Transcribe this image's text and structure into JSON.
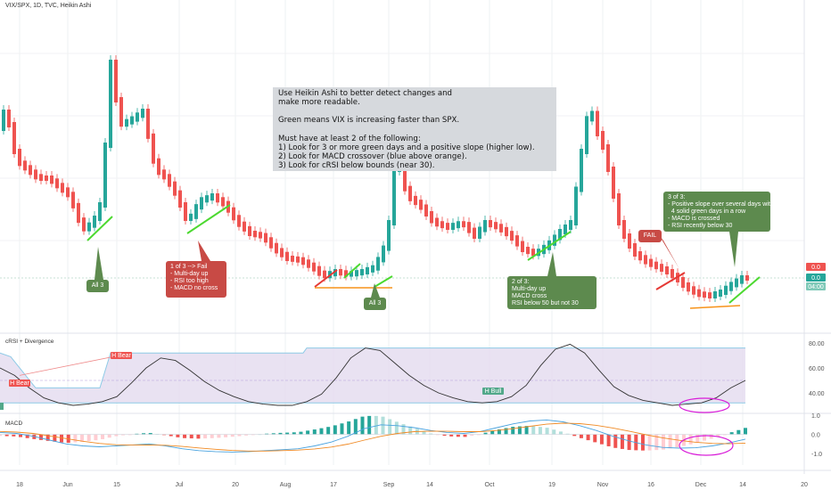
{
  "header": {
    "symbol_line": "VIX/SPX, 1D, TVC, Heikin Ashi"
  },
  "colors": {
    "bull": "#26a69a",
    "bear": "#ef5350",
    "orange": "#f7931a",
    "slope_green": "#4cd930",
    "slope_red": "#e53935",
    "magenta": "#d81bd8",
    "band_fill": "#e4dbef",
    "macd_line": "#4aa3df",
    "signal_line": "#f08a24"
  },
  "info_box": {
    "lines": [
      "Use Heikin Ashi to better detect changes and",
      "make more readable.",
      "",
      "Green means VIX is increasing faster than SPX.",
      "",
      "Must have at least 2 of the following:",
      "1) Look for 3 or more green days and a positive slope (higher low).",
      "2) Look for MACD crossover (blue above orange).",
      "3) Look for cRSI below bounds (near 30)."
    ]
  },
  "callouts": {
    "all3_a": "All 3",
    "fail_box": [
      "1 of 3 --> Fail",
      "- Multi-day up",
      "- RSI too high",
      "- MACD no cross"
    ],
    "all3_b": "All 3",
    "two_of_3": [
      "2 of 3:",
      "Multi-day up",
      "MACD cross",
      "RSI below 50 but not 30"
    ],
    "fail_tag": "FAIL",
    "three_of_3": [
      "3 of 3:",
      "- Positive slope over several days with",
      "  4 solid green days in a row",
      "- MACD is crossed",
      "- RSI recently below 30"
    ]
  },
  "price_tags": {
    "a": "0.0",
    "b": "0.0",
    "time": "04:00"
  },
  "crsi_pane": {
    "title": "cRSI + Divergence",
    "labels": {
      "h_bear_1": "H Bear",
      "h_bear_2": "H Bear",
      "h_bull": "H Bull"
    }
  },
  "macd_pane": {
    "title": "MACD"
  },
  "chart_data": [
    {
      "type": "candlestick",
      "title": "VIX/SPX, 1D, TVC, Heikin Ashi",
      "x": [
        "18",
        "Jun",
        "15",
        "Jul",
        "20",
        "Aug",
        "17",
        "Sep",
        "14",
        "Oct",
        "19",
        "Nov",
        "16",
        "Dec",
        "14",
        "20"
      ],
      "y_tick_labels": [
        "0.0",
        "0.0"
      ],
      "grid": true
    },
    {
      "type": "line",
      "title": "cRSI + Divergence",
      "ylim": [
        25,
        85
      ],
      "y_ticks": [
        40.0,
        60.0,
        80.0
      ],
      "series": [
        {
          "values": [
            60,
            54,
            44,
            36,
            32,
            30,
            31,
            33,
            37,
            48,
            60,
            68,
            66,
            58,
            49,
            42,
            37,
            33,
            31,
            30,
            30,
            33,
            39,
            52,
            68,
            76,
            74,
            64,
            54,
            46,
            40,
            36,
            33,
            32,
            33,
            37,
            46,
            62,
            75,
            79,
            72,
            58,
            45,
            38,
            34,
            32,
            30,
            31,
            32,
            36,
            44,
            50
          ]
        }
      ]
    },
    {
      "type": "bar",
      "title": "MACD",
      "ylim": [
        -1.6,
        1.0
      ],
      "y_ticks": [
        -1.0,
        0.0,
        1.0
      ],
      "series": [
        {
          "name": "MACD",
          "values": [
            0.1,
            0.05,
            -0.1,
            -0.3,
            -0.5,
            -0.6,
            -0.65,
            -0.6,
            -0.55,
            -0.5,
            -0.6,
            -0.75,
            -0.85,
            -0.9,
            -0.92,
            -0.9,
            -0.85,
            -0.8,
            -0.75,
            -0.6,
            -0.4,
            -0.1,
            0.3,
            0.5,
            0.45,
            0.35,
            0.2,
            0.1,
            0.05,
            0.15,
            0.35,
            0.55,
            0.7,
            0.75,
            0.65,
            0.45,
            0.2,
            -0.1,
            -0.35,
            -0.55,
            -0.68,
            -0.72,
            -0.7,
            -0.6,
            -0.45,
            -0.25
          ]
        },
        {
          "name": "Signal",
          "values": [
            0.15,
            0.12,
            0.05,
            -0.08,
            -0.22,
            -0.36,
            -0.47,
            -0.54,
            -0.56,
            -0.55,
            -0.57,
            -0.63,
            -0.71,
            -0.78,
            -0.84,
            -0.87,
            -0.87,
            -0.85,
            -0.82,
            -0.76,
            -0.66,
            -0.51,
            -0.3,
            -0.1,
            0.05,
            0.14,
            0.17,
            0.16,
            0.14,
            0.14,
            0.2,
            0.3,
            0.42,
            0.53,
            0.58,
            0.56,
            0.47,
            0.33,
            0.16,
            -0.02,
            -0.18,
            -0.31,
            -0.41,
            -0.47,
            -0.49,
            -0.46
          ]
        }
      ]
    }
  ]
}
